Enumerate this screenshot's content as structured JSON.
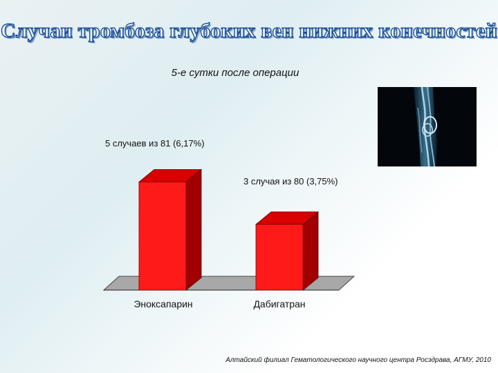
{
  "title": "Случаи тромбоза глубоких вен нижних конечностей",
  "footer": "Алтайский филиал Гематологического научного центра Росздрава, АГМУ, 2010",
  "chart_data": {
    "type": "bar",
    "title": "5-е сутки после операции",
    "categories": [
      "Эноксапарин",
      "Дабигатран"
    ],
    "values": [
      6.17,
      3.75
    ],
    "data_labels": [
      "5 случаев из 81 (6,17%)",
      "3 случая из 80 (3,75%)"
    ],
    "ylim": [
      0,
      6.5
    ],
    "grid": false,
    "colors": {
      "front": "#ff1a1a",
      "side": "#a00000",
      "top": "#d80000",
      "floor": "#a8a8a8"
    }
  },
  "image": {
    "description": "xray-vein-image"
  }
}
